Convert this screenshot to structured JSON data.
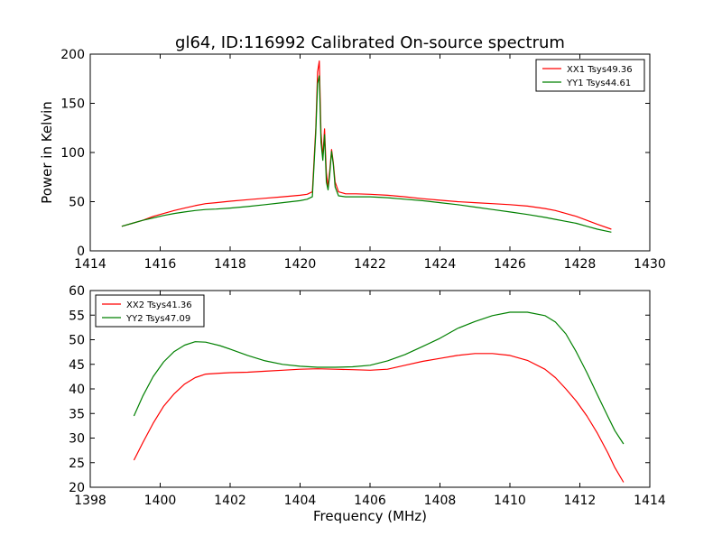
{
  "title": "gl64, ID:116992 Calibrated On-source spectrum",
  "chart_data": [
    {
      "type": "line",
      "title": "gl64, ID:116992 Calibrated On-source spectrum",
      "xlabel": "",
      "ylabel": "Power in Kelvin",
      "xlim": [
        1414,
        1430
      ],
      "ylim": [
        0,
        200
      ],
      "xticks": [
        1414,
        1416,
        1418,
        1420,
        1422,
        1424,
        1426,
        1428,
        1430
      ],
      "yticks": [
        0,
        50,
        100,
        150,
        200
      ],
      "grid": false,
      "legend_position": "top-right",
      "series": [
        {
          "name": "XX1 Tsys49.36",
          "color": "#ff0000",
          "x": [
            1414.9,
            1415.2,
            1415.5,
            1415.8,
            1416.1,
            1416.4,
            1416.7,
            1417.0,
            1417.3,
            1417.6,
            1418.0,
            1418.5,
            1419.0,
            1419.5,
            1420.0,
            1420.2,
            1420.35,
            1420.45,
            1420.5,
            1420.55,
            1420.6,
            1420.65,
            1420.7,
            1420.75,
            1420.8,
            1420.85,
            1420.9,
            1420.95,
            1421.0,
            1421.1,
            1421.3,
            1421.6,
            1422.0,
            1422.5,
            1423.0,
            1423.5,
            1424.0,
            1424.5,
            1425.0,
            1425.5,
            1426.0,
            1426.5,
            1427.0,
            1427.3,
            1427.6,
            1427.9,
            1428.2,
            1428.5,
            1428.9
          ],
          "y": [
            25,
            28,
            31,
            35,
            38,
            41,
            43.5,
            46,
            48,
            49,
            50.5,
            52,
            53.5,
            55,
            56.5,
            57.5,
            60,
            125,
            182,
            193,
            120,
            95,
            124,
            80,
            65,
            82,
            103,
            90,
            70,
            60,
            58,
            58,
            57.5,
            56.5,
            55,
            53,
            51.5,
            50,
            49,
            48,
            47,
            45.5,
            43,
            41,
            38,
            35,
            31,
            27,
            22
          ]
        },
        {
          "name": "YY1 Tsys44.61",
          "color": "#008000",
          "x": [
            1414.9,
            1415.2,
            1415.5,
            1415.8,
            1416.1,
            1416.4,
            1416.7,
            1417.0,
            1417.3,
            1417.6,
            1418.0,
            1418.5,
            1419.0,
            1419.5,
            1420.0,
            1420.2,
            1420.35,
            1420.45,
            1420.5,
            1420.55,
            1420.6,
            1420.65,
            1420.7,
            1420.75,
            1420.8,
            1420.85,
            1420.9,
            1420.95,
            1421.0,
            1421.1,
            1421.3,
            1421.6,
            1422.0,
            1422.5,
            1423.0,
            1423.5,
            1424.0,
            1424.5,
            1425.0,
            1425.5,
            1426.0,
            1426.5,
            1427.0,
            1427.3,
            1427.6,
            1427.9,
            1428.2,
            1428.5,
            1428.9
          ],
          "y": [
            25,
            28,
            31,
            33.5,
            36,
            38,
            39.5,
            41,
            42,
            42.5,
            43.5,
            45,
            47,
            49,
            51,
            52.5,
            55,
            120,
            170,
            178,
            110,
            92,
            118,
            70,
            62,
            78,
            101,
            88,
            65,
            56,
            55,
            55,
            55,
            54,
            52.5,
            51,
            49,
            47,
            44.5,
            42,
            39.5,
            37,
            34,
            32,
            30,
            28,
            25,
            22,
            19
          ]
        }
      ]
    },
    {
      "type": "line",
      "title": "",
      "xlabel": "Frequency (MHz)",
      "ylabel": "",
      "xlim": [
        1398,
        1414
      ],
      "ylim": [
        20,
        60
      ],
      "xticks": [
        1398,
        1400,
        1402,
        1404,
        1406,
        1408,
        1410,
        1412,
        1414
      ],
      "yticks": [
        20,
        25,
        30,
        35,
        40,
        45,
        50,
        55,
        60
      ],
      "grid": false,
      "legend_position": "top-left",
      "series": [
        {
          "name": "XX2 Tsys41.36",
          "color": "#ff0000",
          "x": [
            1399.25,
            1399.5,
            1399.8,
            1400.1,
            1400.4,
            1400.7,
            1401.0,
            1401.3,
            1401.7,
            1402.0,
            1402.5,
            1403.0,
            1403.5,
            1404.0,
            1404.5,
            1405.0,
            1405.5,
            1406.0,
            1406.5,
            1407.0,
            1407.5,
            1408.0,
            1408.5,
            1409.0,
            1409.5,
            1410.0,
            1410.5,
            1411.0,
            1411.3,
            1411.6,
            1411.9,
            1412.2,
            1412.5,
            1412.8,
            1413.0,
            1413.25
          ],
          "y": [
            25.5,
            29,
            33,
            36.5,
            39,
            41,
            42.3,
            43,
            43.2,
            43.3,
            43.4,
            43.6,
            43.8,
            44,
            44.1,
            44,
            43.9,
            43.8,
            44,
            44.8,
            45.6,
            46.2,
            46.8,
            47.2,
            47.2,
            46.8,
            45.8,
            44,
            42.3,
            40,
            37.5,
            34.5,
            31,
            27,
            24,
            21
          ]
        },
        {
          "name": "YY2 Tsys47.09",
          "color": "#008000",
          "x": [
            1399.25,
            1399.5,
            1399.8,
            1400.1,
            1400.4,
            1400.7,
            1401.0,
            1401.3,
            1401.7,
            1402.0,
            1402.5,
            1403.0,
            1403.5,
            1404.0,
            1404.5,
            1405.0,
            1405.5,
            1406.0,
            1406.5,
            1407.0,
            1407.5,
            1408.0,
            1408.5,
            1409.0,
            1409.5,
            1410.0,
            1410.5,
            1411.0,
            1411.3,
            1411.6,
            1411.9,
            1412.2,
            1412.5,
            1412.8,
            1413.0,
            1413.25
          ],
          "y": [
            34.5,
            38.5,
            42.5,
            45.5,
            47.6,
            48.9,
            49.6,
            49.5,
            48.8,
            48.1,
            46.8,
            45.7,
            45,
            44.6,
            44.4,
            44.4,
            44.5,
            44.8,
            45.7,
            47,
            48.6,
            50.3,
            52.3,
            53.7,
            54.9,
            55.6,
            55.6,
            54.9,
            53.6,
            51.2,
            47.5,
            43.3,
            38.8,
            34.4,
            31.5,
            28.8
          ]
        }
      ]
    }
  ]
}
